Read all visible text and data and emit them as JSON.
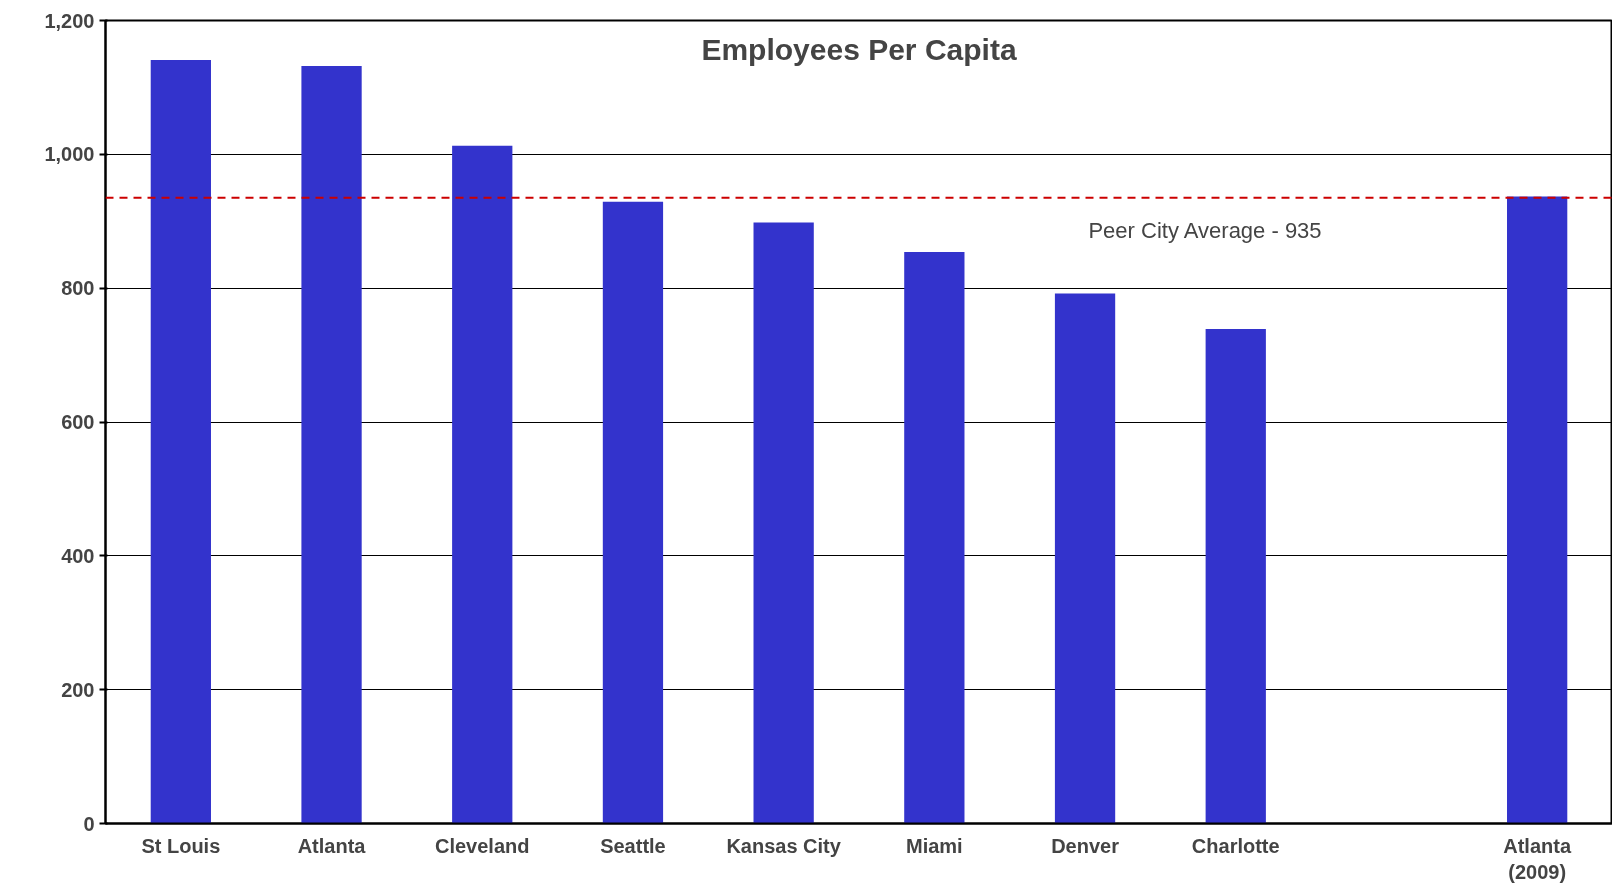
{
  "chart_data": {
    "type": "bar",
    "title": "Employees Per Capita",
    "categories": [
      "St Louis",
      "Atlanta",
      "Cleveland",
      "Seattle",
      "Kansas City",
      "Miami",
      "Denver",
      "Charlotte",
      null,
      "Atlanta\n(2009)"
    ],
    "values": [
      1141,
      1132,
      1013,
      929,
      898,
      854,
      792,
      739,
      null,
      937
    ],
    "color": "#3333cc",
    "ylim": [
      0,
      1200
    ],
    "yticks": [
      0,
      200,
      400,
      600,
      800,
      {
        "value": 1000,
        "label": "1,000"
      },
      {
        "value": 1200,
        "label": "1,200"
      }
    ],
    "grid": "y",
    "ref_lines": [
      {
        "axis": "y",
        "value": 935,
        "label": "Peer City Average - 935",
        "color": "#cc0000",
        "line_style": "dashed"
      }
    ]
  }
}
